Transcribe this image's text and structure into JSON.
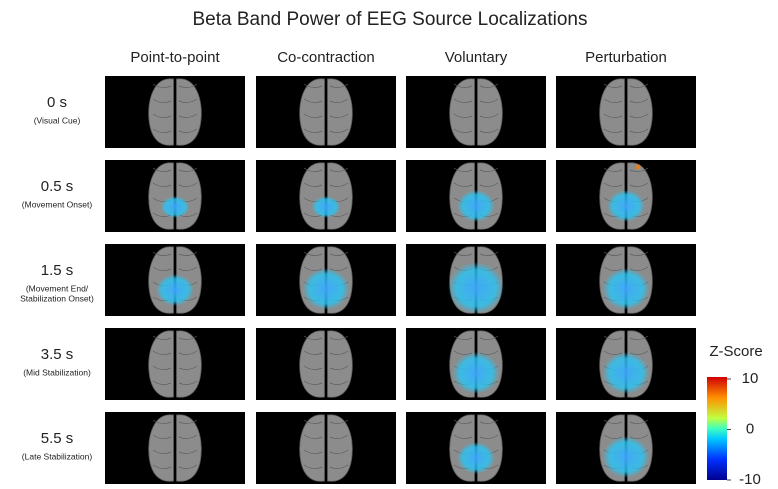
{
  "title": "Beta Band Power of EEG Source Localizations",
  "columns": [
    "Point-to-point",
    "Co-contraction",
    "Voluntary",
    "Perturbation"
  ],
  "rows": [
    {
      "label": "0 s",
      "sublabel": [
        "(Visual Cue)"
      ]
    },
    {
      "label": "0.5 s",
      "sublabel": [
        "(Movement Onset)"
      ]
    },
    {
      "label": "1.5 s",
      "sublabel": [
        "(Movement End/",
        "Stabilization Onset)"
      ]
    },
    {
      "label": "3.5 s",
      "sublabel": [
        "(Mid Stabilization)"
      ]
    },
    {
      "label": "5.5 s",
      "sublabel": [
        "(Late Stabilization)"
      ]
    }
  ],
  "colorbar": {
    "title": "Z-Score",
    "lim": [
      -10,
      10
    ],
    "ticks": [
      10,
      0,
      -10
    ]
  }
}
